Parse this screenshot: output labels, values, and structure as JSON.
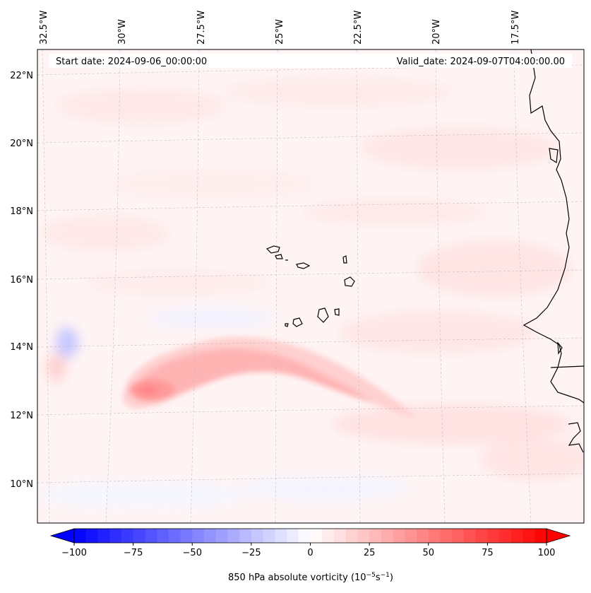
{
  "header": {
    "start_date": "Start date: 2024-09-06_00:00:00",
    "valid_date": "Valid_date: 2024-09-07T04:00:00.00"
  },
  "map": {
    "lon_labels": [
      "32.5°W",
      "30°W",
      "27.5°W",
      "25°W",
      "22.5°W",
      "20°W",
      "17.5°W"
    ],
    "lat_labels": [
      "22°N",
      "20°N",
      "18°N",
      "16°N",
      "14°N",
      "12°N",
      "10°N"
    ],
    "field": "850 hPa absolute vorticity",
    "colors": {
      "positive": "#ff0000",
      "negative": "#0000ff",
      "neutral": "#ffffff",
      "coastline": "#000000",
      "grid": "#bbbbbb"
    }
  },
  "colorbar": {
    "ticks": [
      "−100",
      "−75",
      "−50",
      "−25",
      "0",
      "25",
      "50",
      "75",
      "100"
    ],
    "label_text": "850 hPa absolute vorticity (10",
    "label_exp1": "−5",
    "label_mid": "s",
    "label_exp2": "−1",
    "label_end": ")",
    "min": -100,
    "max": 100
  }
}
